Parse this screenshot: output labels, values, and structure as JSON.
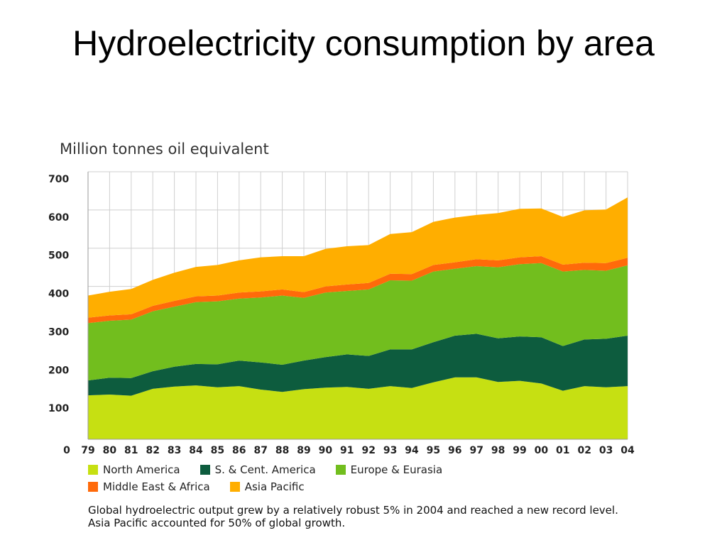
{
  "title": "Hydroelectricity consumption by area",
  "unit_label": "Million tonnes oil equivalent",
  "caption": "Global hydroelectric output grew by a relatively robust 5% in 2004 and reached a new record level. Asia Pacific accounted for 50% of global growth.",
  "chart_data": {
    "type": "area",
    "stacked": true,
    "x": [
      "79",
      "80",
      "81",
      "82",
      "83",
      "84",
      "85",
      "86",
      "87",
      "88",
      "89",
      "90",
      "91",
      "92",
      "93",
      "94",
      "95",
      "96",
      "97",
      "98",
      "99",
      "00",
      "01",
      "02",
      "03",
      "04"
    ],
    "yticks": [
      "100",
      "200",
      "300",
      "400",
      "500",
      "600",
      "700"
    ],
    "origin_label": "0",
    "ylim": [
      0,
      700
    ],
    "grid": true,
    "legend": "bottom",
    "series": [
      {
        "name": "North America",
        "color": "#c6e012",
        "values": [
          115,
          117,
          114,
          132,
          138,
          141,
          136,
          139,
          130,
          124,
          131,
          135,
          137,
          132,
          139,
          134,
          149,
          162,
          162,
          150,
          153,
          146,
          127,
          139,
          136,
          139
        ]
      },
      {
        "name": "S. & Cent. America",
        "color": "#0d5c3e",
        "values": [
          39,
          44,
          46,
          46,
          52,
          56,
          60,
          67,
          71,
          71,
          75,
          80,
          85,
          86,
          96,
          101,
          105,
          109,
          114,
          114,
          116,
          121,
          117,
          122,
          127,
          132
        ]
      },
      {
        "name": "Europe & Eurasia",
        "color": "#72be1e",
        "values": [
          150,
          149,
          153,
          157,
          157,
          162,
          165,
          162,
          170,
          181,
          164,
          169,
          166,
          174,
          181,
          180,
          185,
          175,
          177,
          186,
          189,
          194,
          195,
          182,
          178,
          184
        ]
      },
      {
        "name": "Middle East & Africa",
        "color": "#ff6a0a",
        "values": [
          14,
          14,
          14,
          14,
          15,
          15,
          15,
          16,
          16,
          16,
          15,
          16,
          17,
          17,
          17,
          17,
          17,
          17,
          18,
          18,
          18,
          18,
          18,
          19,
          20,
          20
        ]
      },
      {
        "name": "Asia Pacific",
        "color": "#ffae00",
        "values": [
          58,
          62,
          66,
          68,
          74,
          77,
          80,
          84,
          89,
          87,
          94,
          98,
          100,
          99,
          104,
          110,
          113,
          117,
          116,
          124,
          127,
          125,
          125,
          137,
          140,
          158
        ]
      }
    ]
  }
}
